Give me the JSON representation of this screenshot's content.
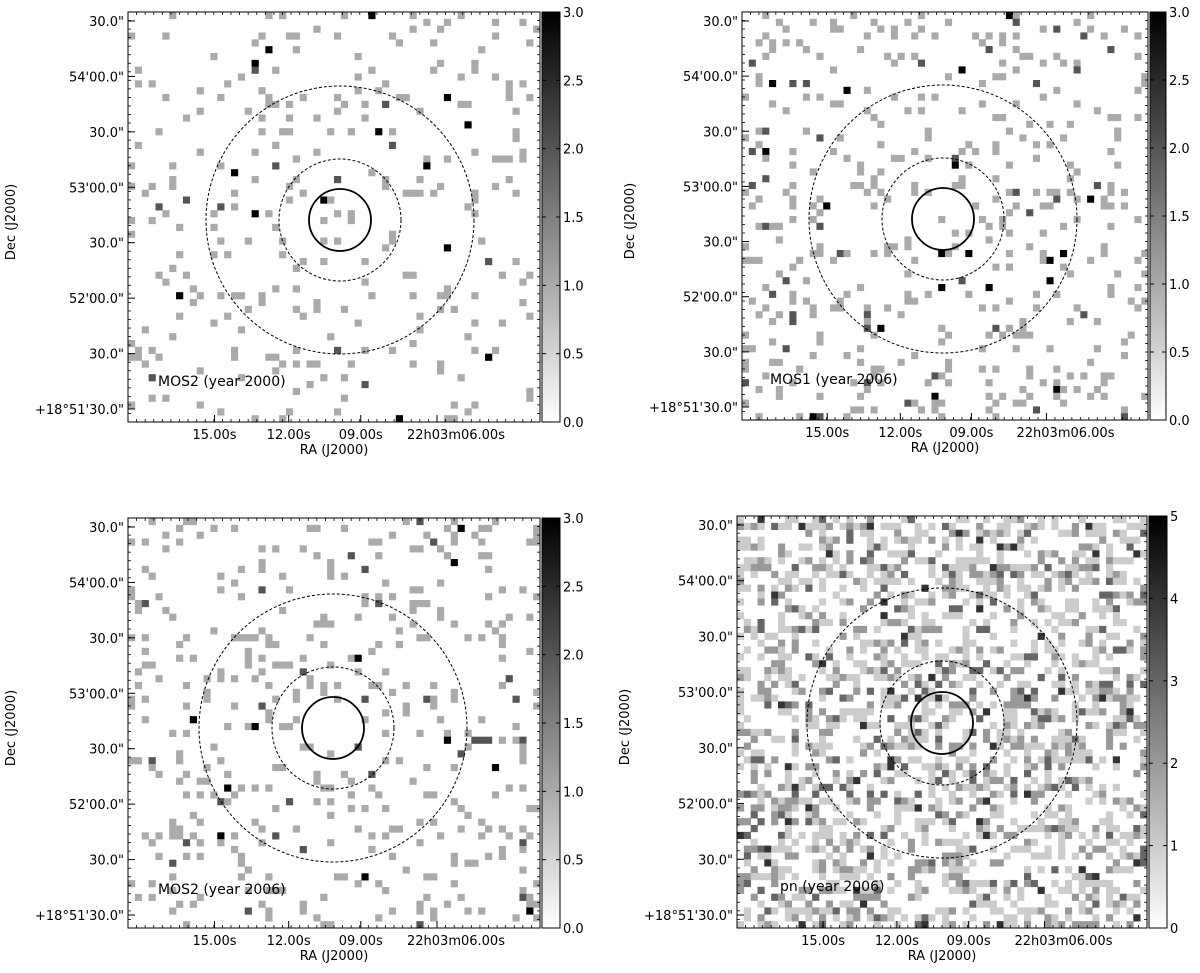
{
  "chart_data": [
    {
      "type": "heatmap",
      "label": "MOS2 (year 2000)",
      "xlabel": "RA (J2000)",
      "ylabel": "Dec (J2000)",
      "x_ticks": [
        "15.00s",
        "12.00s",
        "09.00s",
        "22h03m06.00s"
      ],
      "y_ticks": [
        "+18°51'30.0\"",
        "30.0\"",
        "52'00.0\"",
        "30.0\"",
        "53'00.0\"",
        "30.0\"",
        "54'00.0\"",
        "30.0\""
      ],
      "colorbar": {
        "min": 0,
        "max": 3,
        "ticks": [
          "0.0",
          "0.5",
          "1.0",
          "1.5",
          "2.0",
          "2.5",
          "3.0"
        ]
      },
      "grid_size": 60,
      "pixel_density": 0.08,
      "seed": 11
    },
    {
      "type": "heatmap",
      "label": "MOS1 (year 2006)",
      "xlabel": "RA (J2000)",
      "ylabel": "Dec (J2000)",
      "x_ticks": [
        "15.00s",
        "12.00s",
        "09.00s",
        "22h03m06.00s"
      ],
      "y_ticks": [
        "+18°51'30.0\"",
        "30.0\"",
        "52'00.0\"",
        "30.0\"",
        "53'00.0\"",
        "30.0\"",
        "54'00.0\"",
        "30.0\""
      ],
      "colorbar": {
        "min": 0,
        "max": 3,
        "ticks": [
          "0.0",
          "0.5",
          "1.0",
          "1.5",
          "2.0",
          "2.5",
          "3.0"
        ]
      },
      "grid_size": 60,
      "pixel_density": 0.11,
      "seed": 23
    },
    {
      "type": "heatmap",
      "label": "MOS2 (year 2006)",
      "xlabel": "RA (J2000)",
      "ylabel": "Dec (J2000)",
      "x_ticks": [
        "15.00s",
        "12.00s",
        "09.00s",
        "22h03m06.00s"
      ],
      "y_ticks": [
        "+18°51'30.0\"",
        "30.0\"",
        "52'00.0\"",
        "30.0\"",
        "53'00.0\"",
        "30.0\"",
        "54'00.0\"",
        "30.0\""
      ],
      "colorbar": {
        "min": 0,
        "max": 3,
        "ticks": [
          "0.0",
          "0.5",
          "1.0",
          "1.5",
          "2.0",
          "2.5",
          "3.0"
        ]
      },
      "grid_size": 60,
      "pixel_density": 0.11,
      "seed": 37
    },
    {
      "type": "heatmap",
      "label": "pn (year 2006)",
      "xlabel": "RA (J2000)",
      "ylabel": "Dec (J2000)",
      "x_ticks": [
        "15.00s",
        "12.00s",
        "09.00s",
        "22h03m06.00s"
      ],
      "y_ticks": [
        "+18°51'30.0\"",
        "30.0\"",
        "52'00.0\"",
        "30.0\"",
        "53'00.0\"",
        "30.0\"",
        "54'00.0\"",
        "30.0\""
      ],
      "colorbar": {
        "min": 0,
        "max": 5,
        "ticks": [
          "0",
          "1",
          "2",
          "3",
          "4",
          "5"
        ]
      },
      "grid_size": 60,
      "pixel_density": 0.42,
      "seed": 53
    }
  ]
}
